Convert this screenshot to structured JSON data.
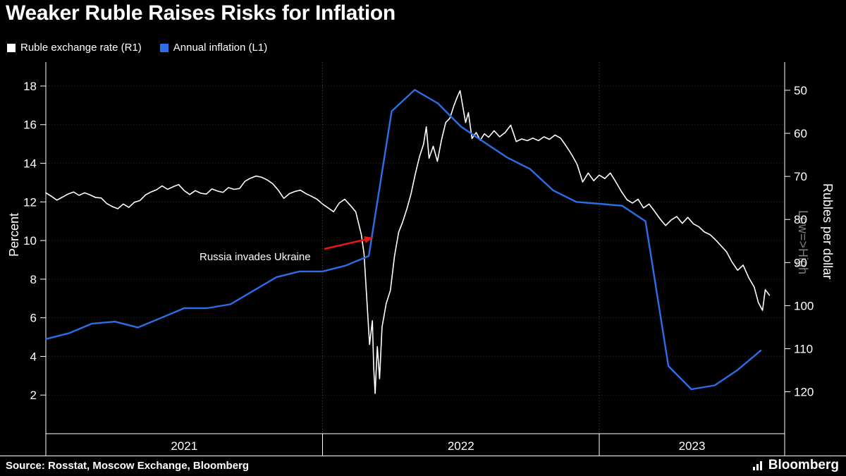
{
  "footer": {
    "source": "Source: Rosstat, Moscow Exchange, Bloomberg",
    "brand": "Bloomberg"
  },
  "chart_data": {
    "type": "line",
    "title": "Weaker Ruble Raises Risks for Inflation",
    "x_unit": "decimal_year",
    "x_range": [
      2021.0,
      2023.67
    ],
    "x_ticks": [
      2021,
      2022,
      2023
    ],
    "grid": true,
    "legend_position": "top-left",
    "left_axis": {
      "label": "Percent",
      "unit": "percent",
      "range": [
        0,
        19.24
      ],
      "ticks": [
        2,
        4,
        6,
        8,
        10,
        12,
        14,
        16,
        18
      ]
    },
    "right_axis": {
      "label": "Rubles per dollar",
      "direction_label": "Low=>High",
      "unit": "RUB per USD",
      "inverted": true,
      "range": [
        43.45,
        129.73
      ],
      "ticks": [
        50,
        60,
        70,
        80,
        90,
        100,
        110,
        120
      ]
    },
    "annotations": [
      {
        "text": "Russia invades Ukraine",
        "x": 2022.15,
        "color": "#e81616"
      }
    ],
    "series": [
      {
        "name": "Ruble exchange rate (R1)",
        "axis": "right",
        "color": "#ffffff",
        "points": [
          [
            2021.0,
            73.8
          ],
          [
            2021.02,
            74.6
          ],
          [
            2021.04,
            75.5
          ],
          [
            2021.06,
            74.8
          ],
          [
            2021.08,
            74.1
          ],
          [
            2021.1,
            73.6
          ],
          [
            2021.12,
            74.4
          ],
          [
            2021.14,
            73.8
          ],
          [
            2021.16,
            74.3
          ],
          [
            2021.18,
            74.9
          ],
          [
            2021.2,
            75.0
          ],
          [
            2021.22,
            76.3
          ],
          [
            2021.24,
            77.0
          ],
          [
            2021.26,
            77.5
          ],
          [
            2021.28,
            76.4
          ],
          [
            2021.3,
            77.2
          ],
          [
            2021.32,
            76.0
          ],
          [
            2021.34,
            75.6
          ],
          [
            2021.36,
            74.3
          ],
          [
            2021.38,
            73.6
          ],
          [
            2021.4,
            73.1
          ],
          [
            2021.42,
            72.2
          ],
          [
            2021.44,
            73.0
          ],
          [
            2021.46,
            72.4
          ],
          [
            2021.48,
            71.9
          ],
          [
            2021.5,
            73.3
          ],
          [
            2021.52,
            74.2
          ],
          [
            2021.54,
            73.3
          ],
          [
            2021.56,
            73.9
          ],
          [
            2021.58,
            74.1
          ],
          [
            2021.6,
            72.9
          ],
          [
            2021.62,
            73.4
          ],
          [
            2021.64,
            73.7
          ],
          [
            2021.66,
            72.6
          ],
          [
            2021.68,
            73.0
          ],
          [
            2021.7,
            72.8
          ],
          [
            2021.72,
            71.1
          ],
          [
            2021.74,
            70.4
          ],
          [
            2021.76,
            69.9
          ],
          [
            2021.78,
            70.2
          ],
          [
            2021.8,
            70.8
          ],
          [
            2021.82,
            71.7
          ],
          [
            2021.84,
            73.2
          ],
          [
            2021.86,
            75.1
          ],
          [
            2021.88,
            74.0
          ],
          [
            2021.9,
            73.5
          ],
          [
            2021.92,
            73.2
          ],
          [
            2021.94,
            74.0
          ],
          [
            2021.96,
            74.6
          ],
          [
            2021.98,
            75.3
          ],
          [
            2022.0,
            76.4
          ],
          [
            2022.02,
            77.3
          ],
          [
            2022.04,
            78.2
          ],
          [
            2022.06,
            76.2
          ],
          [
            2022.08,
            75.3
          ],
          [
            2022.1,
            76.7
          ],
          [
            2022.12,
            78.2
          ],
          [
            2022.14,
            83.5
          ],
          [
            2022.15,
            88.0
          ],
          [
            2022.16,
            98.5
          ],
          [
            2022.17,
            109.0
          ],
          [
            2022.18,
            103.5
          ],
          [
            2022.185,
            114.5
          ],
          [
            2022.19,
            120.4
          ],
          [
            2022.198,
            109.5
          ],
          [
            2022.206,
            117.0
          ],
          [
            2022.215,
            105.0
          ],
          [
            2022.23,
            99.5
          ],
          [
            2022.245,
            96.5
          ],
          [
            2022.26,
            88.5
          ],
          [
            2022.275,
            83.0
          ],
          [
            2022.29,
            80.5
          ],
          [
            2022.305,
            77.5
          ],
          [
            2022.32,
            74.0
          ],
          [
            2022.335,
            69.5
          ],
          [
            2022.35,
            65.5
          ],
          [
            2022.365,
            62.5
          ],
          [
            2022.375,
            58.5
          ],
          [
            2022.385,
            65.8
          ],
          [
            2022.4,
            63.0
          ],
          [
            2022.415,
            66.5
          ],
          [
            2022.43,
            61.5
          ],
          [
            2022.445,
            57.5
          ],
          [
            2022.46,
            56.5
          ],
          [
            2022.475,
            53.5
          ],
          [
            2022.487,
            51.5
          ],
          [
            2022.497,
            50.1
          ],
          [
            2022.507,
            53.8
          ],
          [
            2022.517,
            57.5
          ],
          [
            2022.527,
            55.2
          ],
          [
            2022.54,
            61.2
          ],
          [
            2022.555,
            59.8
          ],
          [
            2022.57,
            61.6
          ],
          [
            2022.585,
            60.1
          ],
          [
            2022.6,
            60.9
          ],
          [
            2022.62,
            59.4
          ],
          [
            2022.64,
            60.8
          ],
          [
            2022.66,
            59.8
          ],
          [
            2022.68,
            58.1
          ],
          [
            2022.7,
            61.9
          ],
          [
            2022.72,
            61.3
          ],
          [
            2022.74,
            61.7
          ],
          [
            2022.76,
            61.1
          ],
          [
            2022.78,
            61.7
          ],
          [
            2022.8,
            60.8
          ],
          [
            2022.82,
            61.4
          ],
          [
            2022.84,
            60.4
          ],
          [
            2022.86,
            61.1
          ],
          [
            2022.88,
            62.9
          ],
          [
            2022.9,
            64.9
          ],
          [
            2022.92,
            67.2
          ],
          [
            2022.94,
            71.3
          ],
          [
            2022.96,
            69.2
          ],
          [
            2022.98,
            71.0
          ],
          [
            2023.0,
            69.7
          ],
          [
            2023.02,
            70.5
          ],
          [
            2023.04,
            69.2
          ],
          [
            2023.06,
            71.3
          ],
          [
            2023.08,
            73.5
          ],
          [
            2023.1,
            75.4
          ],
          [
            2023.12,
            76.2
          ],
          [
            2023.14,
            75.3
          ],
          [
            2023.16,
            77.3
          ],
          [
            2023.18,
            76.4
          ],
          [
            2023.2,
            78.1
          ],
          [
            2023.22,
            79.9
          ],
          [
            2023.24,
            81.4
          ],
          [
            2023.26,
            80.1
          ],
          [
            2023.28,
            79.3
          ],
          [
            2023.3,
            80.9
          ],
          [
            2023.32,
            79.5
          ],
          [
            2023.34,
            81.0
          ],
          [
            2023.36,
            81.7
          ],
          [
            2023.38,
            82.9
          ],
          [
            2023.4,
            83.5
          ],
          [
            2023.42,
            84.7
          ],
          [
            2023.44,
            86.1
          ],
          [
            2023.46,
            87.5
          ],
          [
            2023.48,
            89.9
          ],
          [
            2023.5,
            91.8
          ],
          [
            2023.52,
            90.6
          ],
          [
            2023.54,
            93.5
          ],
          [
            2023.56,
            95.7
          ],
          [
            2023.575,
            99.3
          ],
          [
            2023.59,
            101.1
          ],
          [
            2023.6,
            96.3
          ],
          [
            2023.615,
            97.6
          ]
        ]
      },
      {
        "name": "Annual inflation (L1)",
        "axis": "left",
        "color": "#2b6fe8",
        "points": [
          [
            2021.0,
            4.9
          ],
          [
            2021.083,
            5.2
          ],
          [
            2021.167,
            5.7
          ],
          [
            2021.25,
            5.8
          ],
          [
            2021.333,
            5.5
          ],
          [
            2021.417,
            6.0
          ],
          [
            2021.5,
            6.5
          ],
          [
            2021.583,
            6.5
          ],
          [
            2021.667,
            6.7
          ],
          [
            2021.75,
            7.4
          ],
          [
            2021.833,
            8.1
          ],
          [
            2021.917,
            8.4
          ],
          [
            2022.0,
            8.4
          ],
          [
            2022.083,
            8.7
          ],
          [
            2022.167,
            9.2
          ],
          [
            2022.25,
            16.7
          ],
          [
            2022.333,
            17.8
          ],
          [
            2022.417,
            17.1
          ],
          [
            2022.5,
            15.9
          ],
          [
            2022.583,
            15.1
          ],
          [
            2022.667,
            14.3
          ],
          [
            2022.75,
            13.7
          ],
          [
            2022.833,
            12.6
          ],
          [
            2022.917,
            12.0
          ],
          [
            2023.0,
            11.9
          ],
          [
            2023.083,
            11.8
          ],
          [
            2023.167,
            11.0
          ],
          [
            2023.25,
            3.5
          ],
          [
            2023.333,
            2.3
          ],
          [
            2023.417,
            2.5
          ],
          [
            2023.5,
            3.3
          ],
          [
            2023.583,
            4.3
          ]
        ]
      }
    ]
  }
}
